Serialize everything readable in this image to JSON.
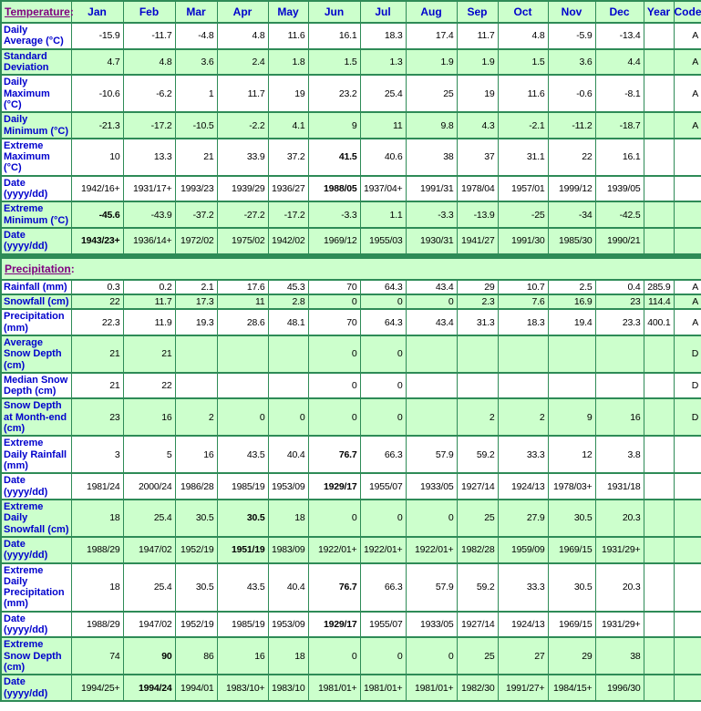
{
  "header": {
    "temperature_label": "Temperature",
    "colon": ":",
    "months": [
      "Jan",
      "Feb",
      "Mar",
      "Apr",
      "May",
      "Jun",
      "Jul",
      "Aug",
      "Sep",
      "Oct",
      "Nov",
      "Dec"
    ],
    "year_label": "Year",
    "code_label": "Code"
  },
  "precipitation": {
    "label": "Precipitation",
    "colon": ":"
  },
  "temperature_rows": [
    {
      "label": "Daily Average (°C)",
      "values": [
        "-15.9",
        "-11.7",
        "-4.8",
        "4.8",
        "11.6",
        "16.1",
        "18.3",
        "17.4",
        "11.7",
        "4.8",
        "-5.9",
        "-13.4"
      ],
      "year": "",
      "code": "A",
      "shade": "w",
      "bold": []
    },
    {
      "label": "Standard Deviation",
      "values": [
        "4.7",
        "4.8",
        "3.6",
        "2.4",
        "1.8",
        "1.5",
        "1.3",
        "1.9",
        "1.9",
        "1.5",
        "3.6",
        "4.4"
      ],
      "year": "",
      "code": "A",
      "shade": "g",
      "bold": []
    },
    {
      "label": "Daily Maximum (°C)",
      "values": [
        "-10.6",
        "-6.2",
        "1",
        "11.7",
        "19",
        "23.2",
        "25.4",
        "25",
        "19",
        "11.6",
        "-0.6",
        "-8.1"
      ],
      "year": "",
      "code": "A",
      "shade": "w",
      "bold": []
    },
    {
      "label": "Daily Minimum (°C)",
      "values": [
        "-21.3",
        "-17.2",
        "-10.5",
        "-2.2",
        "4.1",
        "9",
        "11",
        "9.8",
        "4.3",
        "-2.1",
        "-11.2",
        "-18.7"
      ],
      "year": "",
      "code": "A",
      "shade": "g",
      "bold": []
    },
    {
      "label": "Extreme Maximum (°C)",
      "values": [
        "10",
        "13.3",
        "21",
        "33.9",
        "37.2",
        "41.5",
        "40.6",
        "38",
        "37",
        "31.1",
        "22",
        "16.1"
      ],
      "year": "",
      "code": "",
      "shade": "w",
      "bold": [
        5
      ]
    },
    {
      "label": "Date (yyyy/dd)",
      "values": [
        "1942/16+",
        "1931/17+",
        "1993/23",
        "1939/29",
        "1936/27",
        "1988/05",
        "1937/04+",
        "1991/31",
        "1978/04",
        "1957/01",
        "1999/12",
        "1939/05"
      ],
      "year": "",
      "code": "",
      "shade": "w",
      "bold": [
        5
      ]
    },
    {
      "label": "Extreme Minimum (°C)",
      "values": [
        "-45.6",
        "-43.9",
        "-37.2",
        "-27.2",
        "-17.2",
        "-3.3",
        "1.1",
        "-3.3",
        "-13.9",
        "-25",
        "-34",
        "-42.5"
      ],
      "year": "",
      "code": "",
      "shade": "g",
      "bold": [
        0
      ]
    },
    {
      "label": "Date (yyyy/dd)",
      "values": [
        "1943/23+",
        "1936/14+",
        "1972/02",
        "1975/02",
        "1942/02",
        "1969/12",
        "1955/03",
        "1930/31",
        "1941/27",
        "1991/30",
        "1985/30",
        "1990/21"
      ],
      "year": "",
      "code": "",
      "shade": "g",
      "bold": [
        0
      ]
    }
  ],
  "precipitation_rows": [
    {
      "label": "Rainfall (mm)",
      "values": [
        "0.3",
        "0.2",
        "2.1",
        "17.6",
        "45.3",
        "70",
        "64.3",
        "43.4",
        "29",
        "10.7",
        "2.5",
        "0.4"
      ],
      "year": "285.9",
      "code": "A",
      "shade": "w",
      "bold": []
    },
    {
      "label": "Snowfall (cm)",
      "values": [
        "22",
        "11.7",
        "17.3",
        "11",
        "2.8",
        "0",
        "0",
        "0",
        "2.3",
        "7.6",
        "16.9",
        "23"
      ],
      "year": "114.4",
      "code": "A",
      "shade": "g",
      "bold": []
    },
    {
      "label": "Precipitation (mm)",
      "values": [
        "22.3",
        "11.9",
        "19.3",
        "28.6",
        "48.1",
        "70",
        "64.3",
        "43.4",
        "31.3",
        "18.3",
        "19.4",
        "23.3"
      ],
      "year": "400.1",
      "code": "A",
      "shade": "w",
      "bold": []
    },
    {
      "label": "Average Snow Depth (cm)",
      "values": [
        "21",
        "21",
        "",
        "",
        "",
        "0",
        "0",
        "",
        "",
        "",
        "",
        ""
      ],
      "year": "",
      "code": "D",
      "shade": "g",
      "bold": []
    },
    {
      "label": "Median Snow Depth (cm)",
      "values": [
        "21",
        "22",
        "",
        "",
        "",
        "0",
        "0",
        "",
        "",
        "",
        "",
        ""
      ],
      "year": "",
      "code": "D",
      "shade": "w",
      "bold": []
    },
    {
      "label": "Snow Depth at Month-end (cm)",
      "values": [
        "23",
        "16",
        "2",
        "0",
        "0",
        "0",
        "0",
        "",
        "2",
        "2",
        "9",
        "16"
      ],
      "year": "",
      "code": "D",
      "shade": "g",
      "bold": []
    },
    {
      "label": "Extreme Daily Rainfall (mm)",
      "values": [
        "3",
        "5",
        "16",
        "43.5",
        "40.4",
        "76.7",
        "66.3",
        "57.9",
        "59.2",
        "33.3",
        "12",
        "3.8"
      ],
      "year": "",
      "code": "",
      "shade": "w",
      "bold": [
        5
      ]
    },
    {
      "label": "Date (yyyy/dd)",
      "values": [
        "1981/24",
        "2000/24",
        "1986/28",
        "1985/19",
        "1953/09",
        "1929/17",
        "1955/07",
        "1933/05",
        "1927/14",
        "1924/13",
        "1978/03+",
        "1931/18"
      ],
      "year": "",
      "code": "",
      "shade": "w",
      "bold": [
        5
      ]
    },
    {
      "label": "Extreme Daily Snowfall (cm)",
      "values": [
        "18",
        "25.4",
        "30.5",
        "30.5",
        "18",
        "0",
        "0",
        "0",
        "25",
        "27.9",
        "30.5",
        "20.3"
      ],
      "year": "",
      "code": "",
      "shade": "g",
      "bold": [
        3
      ]
    },
    {
      "label": "Date (yyyy/dd)",
      "values": [
        "1988/29",
        "1947/02",
        "1952/19",
        "1951/19",
        "1983/09",
        "1922/01+",
        "1922/01+",
        "1922/01+",
        "1982/28",
        "1959/09",
        "1969/15",
        "1931/29+"
      ],
      "year": "",
      "code": "",
      "shade": "g",
      "bold": [
        3
      ]
    },
    {
      "label": "Extreme Daily Precipitation (mm)",
      "values": [
        "18",
        "25.4",
        "30.5",
        "43.5",
        "40.4",
        "76.7",
        "66.3",
        "57.9",
        "59.2",
        "33.3",
        "30.5",
        "20.3"
      ],
      "year": "",
      "code": "",
      "shade": "w",
      "bold": [
        5
      ]
    },
    {
      "label": "Date (yyyy/dd)",
      "values": [
        "1988/29",
        "1947/02",
        "1952/19",
        "1985/19",
        "1953/09",
        "1929/17",
        "1955/07",
        "1933/05",
        "1927/14",
        "1924/13",
        "1969/15",
        "1931/29+"
      ],
      "year": "",
      "code": "",
      "shade": "w",
      "bold": [
        5
      ]
    },
    {
      "label": "Extreme Snow Depth (cm)",
      "values": [
        "74",
        "90",
        "86",
        "16",
        "18",
        "0",
        "0",
        "0",
        "25",
        "27",
        "29",
        "38"
      ],
      "year": "",
      "code": "",
      "shade": "g",
      "bold": [
        1
      ]
    },
    {
      "label": "Date (yyyy/dd)",
      "values": [
        "1994/25+",
        "1994/24",
        "1994/01",
        "1983/10+",
        "1983/10",
        "1981/01+",
        "1981/01+",
        "1981/01+",
        "1982/30",
        "1991/27+",
        "1984/15+",
        "1996/30"
      ],
      "year": "",
      "code": "",
      "shade": "g",
      "bold": [
        1
      ]
    }
  ],
  "colors": {
    "border_green": "#2E8B57",
    "shaded_row_green": "#CCFFCC",
    "label_blue": "#0000CC",
    "section_purple": "#800080",
    "data_text": "#000000"
  }
}
